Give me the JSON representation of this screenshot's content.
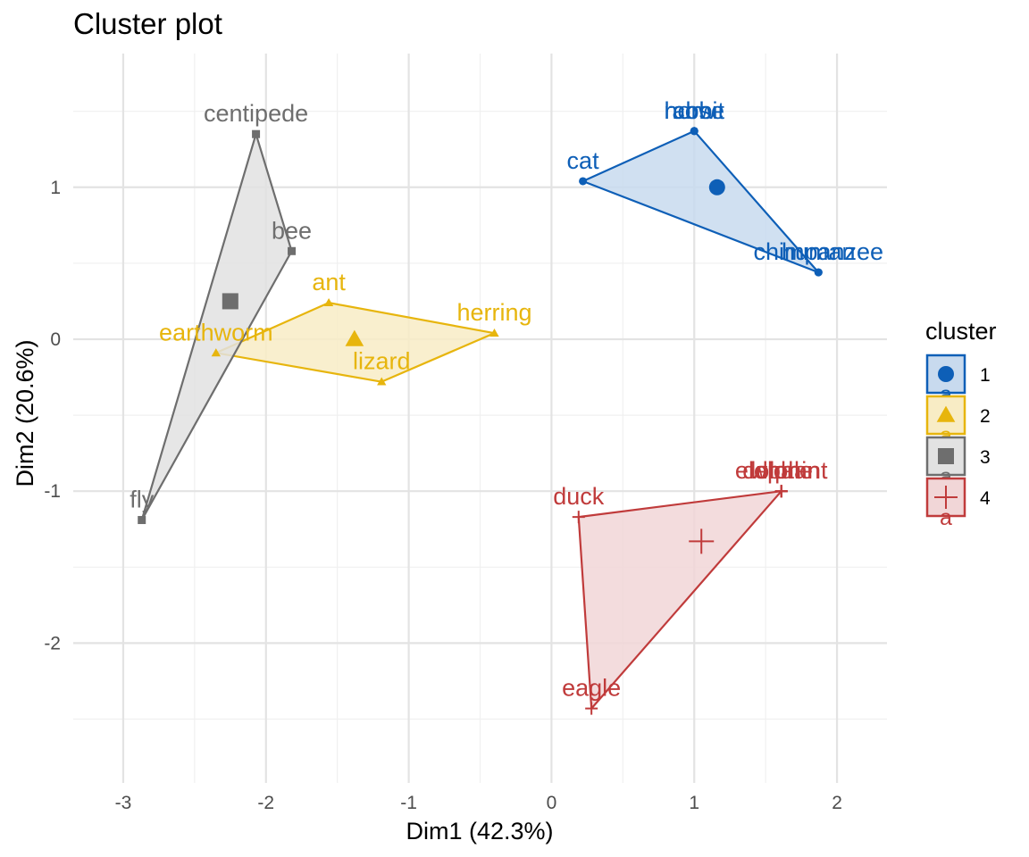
{
  "chart_data": {
    "type": "scatter",
    "title": "Cluster plot",
    "xlabel": "Dim1 (42.3%)",
    "ylabel": "Dim2 (20.6%)",
    "xlim": [
      -3.35,
      2.35
    ],
    "ylim": [
      -2.92,
      1.88
    ],
    "x_ticks": [
      -3,
      -2,
      -1,
      0,
      1,
      2
    ],
    "y_ticks": [
      -2,
      -1,
      0,
      1
    ],
    "x_tick_labels": [
      "-3",
      "-2",
      "-1",
      "0",
      "1",
      "2"
    ],
    "y_tick_labels": [
      "-2",
      "-1",
      "0",
      "1"
    ],
    "grid": true,
    "legend_position": "right",
    "legend_title": "cluster",
    "legend_glyph_text": "a",
    "series": [
      {
        "name": "1",
        "color": "#0e5fb7",
        "fill": "#c8daee",
        "shape": "circle",
        "points": [
          {
            "label": "cat",
            "x": 0.22,
            "y": 1.04
          },
          {
            "label": "horse",
            "x": 1.0,
            "y": 1.37
          },
          {
            "label": "cow",
            "x": 1.0,
            "y": 1.37
          },
          {
            "label": "rabbit",
            "x": 1.0,
            "y": 1.37
          },
          {
            "label": "chimpanzee",
            "x": 1.87,
            "y": 0.44
          },
          {
            "label": "human",
            "x": 1.87,
            "y": 0.44
          }
        ],
        "center": {
          "x": 1.16,
          "y": 1.0
        },
        "hull": [
          [
            0.22,
            1.04
          ],
          [
            1.0,
            1.37
          ],
          [
            1.87,
            0.44
          ]
        ]
      },
      {
        "name": "2",
        "color": "#e7b50d",
        "fill": "#f8ecc5",
        "shape": "triangle",
        "points": [
          {
            "label": "ant",
            "x": -1.56,
            "y": 0.24
          },
          {
            "label": "earthworm",
            "x": -2.35,
            "y": -0.09
          },
          {
            "label": "herring",
            "x": -0.4,
            "y": 0.04
          },
          {
            "label": "lizard",
            "x": -1.19,
            "y": -0.28
          }
        ],
        "center": {
          "x": -1.38,
          "y": 0.0
        },
        "hull": [
          [
            -2.35,
            -0.09
          ],
          [
            -1.56,
            0.24
          ],
          [
            -0.4,
            0.04
          ],
          [
            -1.19,
            -0.28
          ]
        ]
      },
      {
        "name": "3",
        "color": "#6e6e6e",
        "fill": "#e2e2e2",
        "shape": "square",
        "points": [
          {
            "label": "centipede",
            "x": -2.07,
            "y": 1.35
          },
          {
            "label": "bee",
            "x": -1.82,
            "y": 0.58
          },
          {
            "label": "fly",
            "x": -2.87,
            "y": -1.19
          }
        ],
        "center": {
          "x": -2.25,
          "y": 0.25
        },
        "hull": [
          [
            -2.87,
            -1.19
          ],
          [
            -2.07,
            1.35
          ],
          [
            -1.82,
            0.58
          ]
        ]
      },
      {
        "name": "4",
        "color": "#c03b3b",
        "fill": "#f1d6d7",
        "shape": "cross",
        "points": [
          {
            "label": "duck",
            "x": 0.19,
            "y": -1.17
          },
          {
            "label": "eagle",
            "x": 0.28,
            "y": -2.43
          },
          {
            "label": "elephant",
            "x": 1.61,
            "y": -1.0
          },
          {
            "label": "dolphin",
            "x": 1.61,
            "y": -1.0
          },
          {
            "label": "lion",
            "x": 1.61,
            "y": -1.0
          },
          {
            "label": "whale",
            "x": 1.61,
            "y": -1.0
          }
        ],
        "center": {
          "x": 1.05,
          "y": -1.33
        },
        "hull": [
          [
            0.19,
            -1.17
          ],
          [
            1.61,
            -1.0
          ],
          [
            0.28,
            -2.43
          ]
        ]
      }
    ]
  }
}
